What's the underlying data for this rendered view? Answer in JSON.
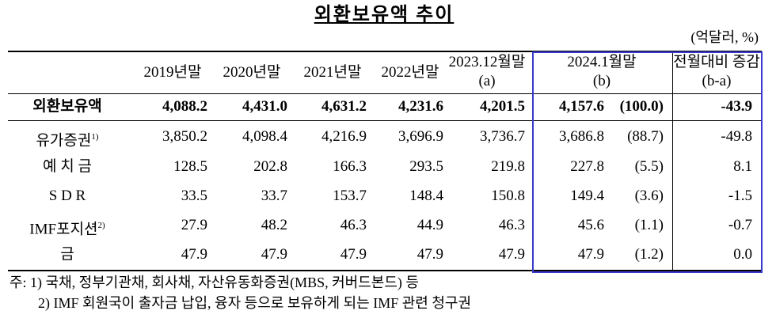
{
  "title": "외환보유액 추이",
  "unit": "(억달러, %)",
  "table": {
    "header": [
      [
        "2019년말"
      ],
      [
        "2020년말"
      ],
      [
        "2021년말"
      ],
      [
        "2022년말"
      ],
      [
        "2023.12월말",
        "(a)"
      ],
      [
        "2024.1월말",
        "(b)"
      ],
      [
        "전월대비 증감",
        "(b-a)"
      ]
    ],
    "rows": [
      {
        "label": "외환보유액",
        "values": [
          "4,088.2",
          "4,431.0",
          "4,631.2",
          "4,231.6",
          "4,201.5",
          "4,157.6",
          "(100.0)",
          "-43.9"
        ]
      },
      {
        "label": "유가증권",
        "note": "1)",
        "values": [
          "3,850.2",
          "4,098.4",
          "4,216.9",
          "3,696.9",
          "3,736.7",
          "3,686.8",
          "(88.7)",
          "-49.8"
        ]
      },
      {
        "label": "예 치 금",
        "values": [
          "128.5",
          "202.8",
          "166.3",
          "293.5",
          "219.8",
          "227.8",
          "(5.5)",
          "8.1"
        ]
      },
      {
        "label": "S D R",
        "values": [
          "33.5",
          "33.7",
          "153.7",
          "148.4",
          "150.8",
          "149.4",
          "(3.6)",
          "-1.5"
        ]
      },
      {
        "label": "IMF포지션",
        "note": "2)",
        "values": [
          "27.9",
          "48.2",
          "46.3",
          "44.9",
          "46.3",
          "45.6",
          "(1.1)",
          "-0.7"
        ]
      },
      {
        "label": "금",
        "values": [
          "47.9",
          "47.9",
          "47.9",
          "47.9",
          "47.9",
          "47.9",
          "(1.2)",
          "0.0"
        ]
      }
    ]
  },
  "notes": [
    "주: 1) 국채, 정부기관채, 회사채, 자산유동화증권(MBS, 커버드본드) 등",
    "2) IMF 회원국이 출자금 납입, 융자 등으로 보유하게 되는 IMF 관련 청구권"
  ]
}
